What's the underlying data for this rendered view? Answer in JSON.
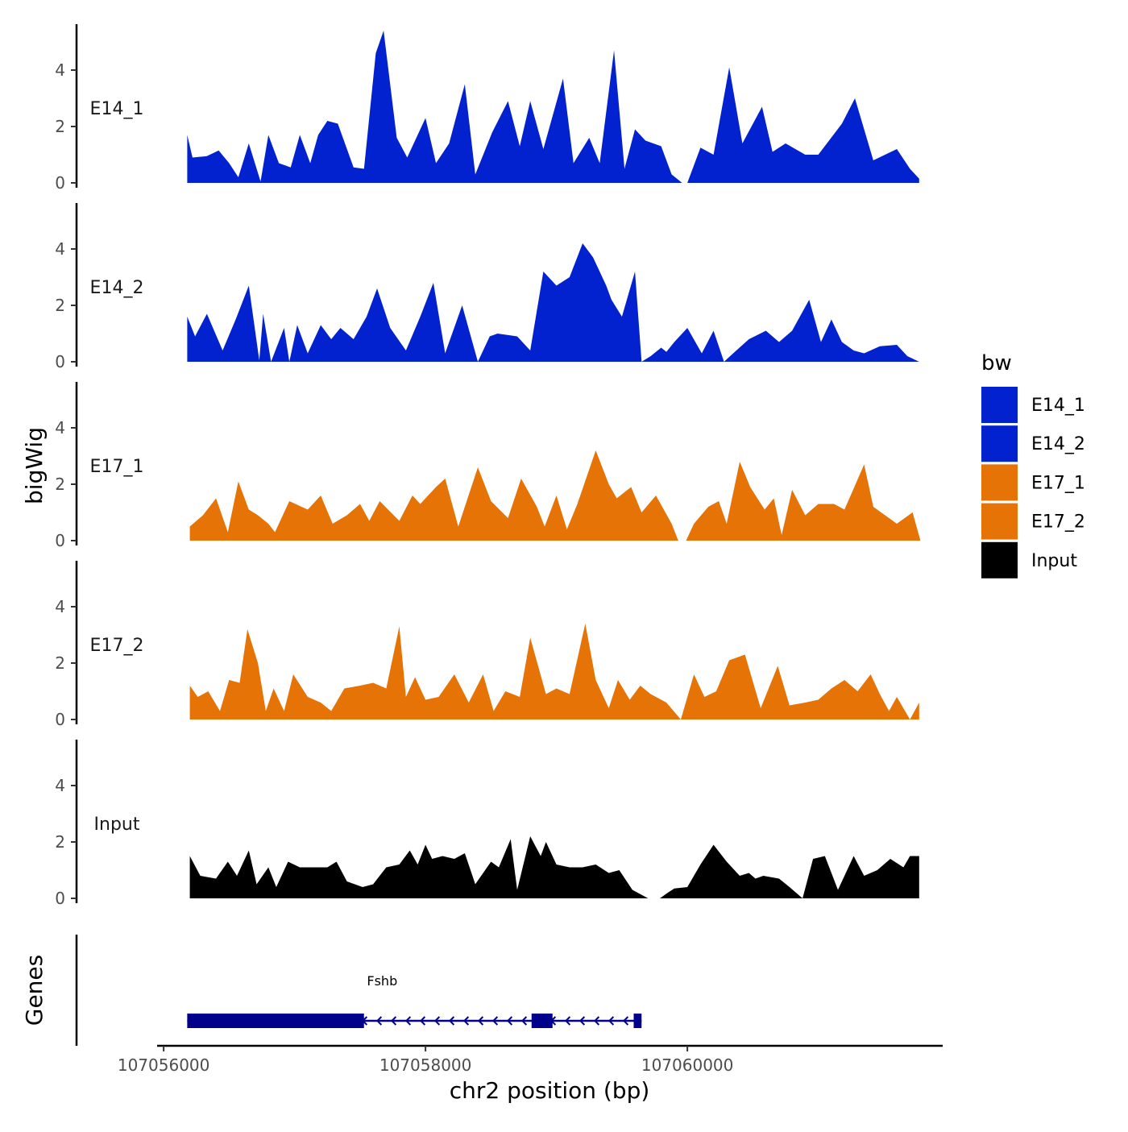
{
  "chart_data": {
    "type": "area",
    "title": "",
    "xlabel": "chr2 position (bp)",
    "ylabel": "bigWig",
    "genes_label": "Genes",
    "xlim": [
      107055950,
      107061950
    ],
    "ylim": [
      0,
      5.6
    ],
    "x_ticks": [
      107056000,
      107058000,
      107060000
    ],
    "x_tick_labels": [
      "107056000",
      "107058000",
      "107060000"
    ],
    "y_ticks": [
      0,
      2,
      4
    ],
    "y_tick_labels": [
      "0",
      "2",
      "4"
    ],
    "legend": {
      "title": "bw",
      "position": "right",
      "entries": [
        {
          "label": "E14_1",
          "color": "#0322CF"
        },
        {
          "label": "E14_2",
          "color": "#0322CF"
        },
        {
          "label": "E17_1",
          "color": "#E67306"
        },
        {
          "label": "E17_2",
          "color": "#E67306"
        },
        {
          "label": "Input",
          "color": "#000000"
        }
      ]
    },
    "series": [
      {
        "name": "E14_1",
        "color": "#0322CF",
        "x": [
          107056180,
          107056220,
          107056330,
          107056420,
          107056500,
          107056570,
          107056650,
          107056740,
          107056800,
          107056880,
          107056970,
          107057040,
          107057120,
          107057180,
          107057250,
          107057330,
          107057450,
          107057530,
          107057620,
          107057680,
          107057780,
          107057860,
          107058000,
          107058080,
          107058180,
          107058300,
          107058380,
          107058510,
          107058630,
          107058720,
          107058800,
          107058900,
          107059050,
          107059130,
          107059250,
          107059330,
          107059440,
          107059520,
          107059600,
          107059680,
          107059800,
          107059880,
          107059960,
          107060000,
          107060100,
          107060200,
          107060320,
          107060420,
          107060570,
          107060650,
          107060750,
          107060900,
          107061000,
          107061180,
          107061280,
          107061420,
          107061600,
          107061700,
          107061770
        ],
        "y": [
          1.7,
          0.9,
          0.95,
          1.15,
          0.7,
          0.2,
          1.4,
          0.05,
          1.7,
          0.7,
          0.55,
          1.7,
          0.7,
          1.7,
          2.2,
          2.1,
          0.55,
          0.5,
          4.6,
          5.4,
          1.6,
          0.9,
          2.3,
          0.7,
          1.4,
          3.5,
          0.3,
          1.8,
          2.9,
          1.3,
          2.9,
          1.2,
          3.7,
          0.7,
          1.6,
          0.7,
          4.7,
          0.5,
          1.9,
          1.5,
          1.3,
          0.3,
          0.0,
          0.0,
          1.25,
          1.0,
          4.1,
          1.4,
          2.7,
          1.1,
          1.4,
          1.0,
          1.0,
          2.1,
          3.0,
          0.8,
          1.2,
          0.5,
          0.15
        ]
      },
      {
        "name": "E14_2",
        "color": "#0322CF",
        "x": [
          107056180,
          107056240,
          107056330,
          107056450,
          107056550,
          107056650,
          107056730,
          107056760,
          107056820,
          107056920,
          107056960,
          107057020,
          107057100,
          107057200,
          107057280,
          107057350,
          107057450,
          107057550,
          107057630,
          107057730,
          107057850,
          107057960,
          107058060,
          107058150,
          107058280,
          107058400,
          107058490,
          107058550,
          107058700,
          107058800,
          107058900,
          107059000,
          107059100,
          107059200,
          107059280,
          107059380,
          107059420,
          107059500,
          107059600,
          107059650,
          107059720,
          107059800,
          107059840,
          107059900,
          107060000,
          107060110,
          107060200,
          107060280,
          107060350,
          107060470,
          107060600,
          107060700,
          107060800,
          107060930,
          107061020,
          107061100,
          107061180,
          107061270,
          107061350,
          107061470,
          107061600,
          107061680,
          107061770
        ],
        "y": [
          1.6,
          0.9,
          1.7,
          0.4,
          1.5,
          2.7,
          0.05,
          1.7,
          0.0,
          1.2,
          0.0,
          1.3,
          0.3,
          1.3,
          0.8,
          1.2,
          0.8,
          1.6,
          2.6,
          1.2,
          0.4,
          1.6,
          2.8,
          0.3,
          2.0,
          0.0,
          0.9,
          1.0,
          0.9,
          0.4,
          3.2,
          2.7,
          3.0,
          4.2,
          3.7,
          2.7,
          2.2,
          1.6,
          3.2,
          0.0,
          0.2,
          0.5,
          0.35,
          0.7,
          1.2,
          0.3,
          1.1,
          0.0,
          0.3,
          0.8,
          1.1,
          0.7,
          1.1,
          2.2,
          0.7,
          1.5,
          0.7,
          0.4,
          0.3,
          0.55,
          0.6,
          0.2,
          0.0
        ]
      },
      {
        "name": "E17_1",
        "color": "#E67306",
        "x": [
          107056200,
          107056300,
          107056400,
          107056490,
          107056570,
          107056650,
          107056720,
          107056800,
          107056850,
          107056960,
          107057100,
          107057200,
          107057290,
          107057400,
          107057500,
          107057570,
          107057650,
          107057800,
          107057900,
          107057960,
          107058080,
          107058150,
          107058250,
          107058400,
          107058500,
          107058630,
          107058730,
          107058850,
          107058910,
          107059000,
          107059080,
          107059160,
          107059300,
          107059400,
          107059460,
          107059570,
          107059650,
          107059760,
          107059880,
          107059930,
          107059990,
          107060050,
          107060160,
          107060240,
          107060300,
          107060400,
          107060480,
          107060590,
          107060660,
          107060720,
          107060800,
          107060900,
          107061000,
          107061120,
          107061200,
          107061350,
          107061420,
          107061600,
          107061720,
          107061780
        ],
        "y": [
          0.5,
          0.9,
          1.5,
          0.3,
          2.1,
          1.1,
          0.9,
          0.6,
          0.3,
          1.4,
          1.1,
          1.6,
          0.6,
          0.9,
          1.3,
          0.7,
          1.4,
          0.7,
          1.6,
          1.3,
          1.9,
          2.2,
          0.5,
          2.6,
          1.4,
          0.8,
          2.2,
          1.2,
          0.5,
          1.6,
          0.4,
          1.3,
          3.2,
          2.0,
          1.5,
          1.9,
          1.0,
          1.6,
          0.6,
          0.0,
          0.0,
          0.6,
          1.2,
          1.4,
          0.6,
          2.8,
          1.9,
          1.1,
          1.5,
          0.2,
          1.8,
          0.9,
          1.3,
          1.3,
          1.1,
          2.7,
          1.2,
          0.6,
          1.0,
          0.0
        ]
      },
      {
        "name": "E17_2",
        "color": "#E67306",
        "x": [
          107056200,
          107056260,
          107056340,
          107056430,
          107056500,
          107056580,
          107056640,
          107056720,
          107056780,
          107056840,
          107056920,
          107056990,
          107057100,
          107057200,
          107057280,
          107057380,
          107057500,
          107057600,
          107057700,
          107057800,
          107057850,
          107057920,
          107058000,
          107058100,
          107058220,
          107058330,
          107058440,
          107058520,
          107058610,
          107058720,
          107058800,
          107058920,
          107059000,
          107059100,
          107059220,
          107059300,
          107059400,
          107059470,
          107059560,
          107059640,
          107059720,
          107059840,
          107059950,
          107060050,
          107060130,
          107060220,
          107060320,
          107060440,
          107060560,
          107060690,
          107060780,
          107060900,
          107061000,
          107061100,
          107061200,
          107061300,
          107061400,
          107061470,
          107061540,
          107061600,
          107061700,
          107061770
        ],
        "y": [
          1.2,
          0.8,
          1.0,
          0.3,
          1.4,
          1.3,
          3.2,
          2.0,
          0.3,
          1.1,
          0.3,
          1.6,
          0.8,
          0.6,
          0.3,
          1.1,
          1.2,
          1.3,
          1.1,
          3.3,
          0.8,
          1.5,
          0.7,
          0.8,
          1.6,
          0.6,
          1.6,
          0.3,
          1.0,
          0.8,
          2.9,
          0.9,
          1.1,
          0.9,
          3.4,
          1.4,
          0.4,
          1.4,
          0.7,
          1.2,
          0.9,
          0.6,
          0.0,
          1.6,
          0.8,
          1.0,
          2.1,
          2.3,
          0.4,
          1.9,
          0.5,
          0.6,
          0.7,
          1.1,
          1.4,
          1.0,
          1.6,
          0.9,
          0.3,
          0.8,
          0.0,
          0.6
        ]
      },
      {
        "name": "Input",
        "color": "#000000",
        "x": [
          107056200,
          107056280,
          107056400,
          107056490,
          107056560,
          107056650,
          107056710,
          107056800,
          107056860,
          107056950,
          107057040,
          107057120,
          107057250,
          107057320,
          107057400,
          107057520,
          107057600,
          107057700,
          107057800,
          107057880,
          107057940,
          107058000,
          107058050,
          107058130,
          107058220,
          107058300,
          107058380,
          107058500,
          107058560,
          107058650,
          107058700,
          107058800,
          107058880,
          107058920,
          107059000,
          107059100,
          107059200,
          107059300,
          107059400,
          107059480,
          107059580,
          107059700,
          107059790,
          107059850,
          107059900,
          107060000,
          107060100,
          107060200,
          107060300,
          107060400,
          107060470,
          107060520,
          107060580,
          107060700,
          107060780,
          107060880,
          107060960,
          107061050,
          107061150,
          107061270,
          107061350,
          107061450,
          107061550,
          107061650,
          107061700,
          107061770
        ],
        "y": [
          1.5,
          0.8,
          0.7,
          1.3,
          0.8,
          1.7,
          0.5,
          1.1,
          0.4,
          1.3,
          1.1,
          1.1,
          1.1,
          1.3,
          0.6,
          0.4,
          0.5,
          1.1,
          1.2,
          1.7,
          1.2,
          1.9,
          1.4,
          1.5,
          1.4,
          1.6,
          0.5,
          1.3,
          1.1,
          2.1,
          0.3,
          2.2,
          1.5,
          2.0,
          1.2,
          1.1,
          1.1,
          1.2,
          0.9,
          1.0,
          0.3,
          0.0,
          0.0,
          0.2,
          0.35,
          0.4,
          1.2,
          1.9,
          1.3,
          0.8,
          0.9,
          0.7,
          0.8,
          0.7,
          0.4,
          0.0,
          1.4,
          1.5,
          0.3,
          1.5,
          0.8,
          1.0,
          1.4,
          1.1,
          1.5,
          1.5
        ]
      }
    ],
    "genes": [
      {
        "name": "Fshb",
        "strand": "-",
        "start": 107056180,
        "end": 107059650,
        "exons": [
          {
            "start": 107056180,
            "end": 107057530
          },
          {
            "start": 107058810,
            "end": 107058970
          },
          {
            "start": 107059590,
            "end": 107059650
          }
        ]
      }
    ]
  }
}
